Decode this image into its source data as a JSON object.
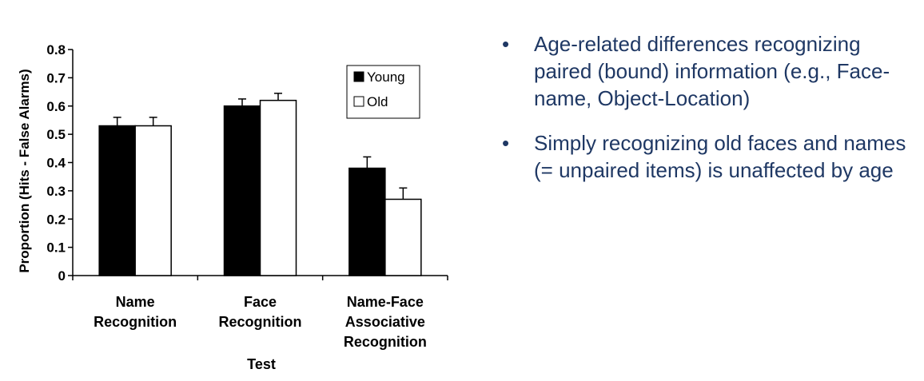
{
  "chart_data": {
    "type": "bar",
    "categories": [
      [
        "Name",
        "Recognition"
      ],
      [
        "Face",
        "Recognition"
      ],
      [
        "Name-Face",
        "Associative",
        "Recognition"
      ]
    ],
    "series": [
      {
        "name": "Young",
        "color": "#000000",
        "values": [
          0.53,
          0.6,
          0.38
        ],
        "errors": [
          0.03,
          0.025,
          0.04
        ]
      },
      {
        "name": "Old",
        "color": "#ffffff",
        "values": [
          0.53,
          0.62,
          0.27
        ],
        "errors": [
          0.03,
          0.025,
          0.04
        ]
      }
    ],
    "title": "",
    "xlabel": "Test",
    "ylabel": "Proportion (Hits - False Alarms)",
    "ylim": [
      0,
      0.8
    ],
    "yticks": [
      "0",
      "0.1",
      "0.2",
      "0.3",
      "0.4",
      "0.5",
      "0.6",
      "0.7",
      "0.8"
    ],
    "legend": "top-right",
    "grid": false
  },
  "bullets": [
    {
      "symbol": "•",
      "text": "Age-related differences recognizing paired (bound) information (e.g., Face-name, Object-Location)"
    },
    {
      "symbol": "•",
      "text": "Simply recognizing old faces and names (= unpaired items) is unaffected by age"
    }
  ]
}
